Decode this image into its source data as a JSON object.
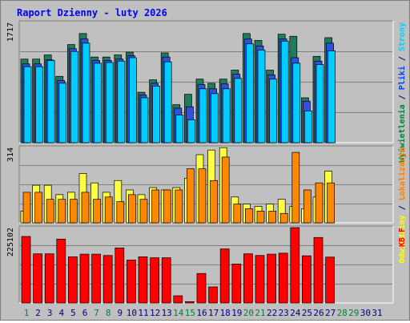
{
  "chart_data": {
    "title": "Raport Dzienny -  luty 2026",
    "type": "bar",
    "x": [
      "1",
      "2",
      "3",
      "4",
      "5",
      "6",
      "7",
      "8",
      "9",
      "10",
      "11",
      "12",
      "13",
      "14",
      "15",
      "16",
      "17",
      "18",
      "19",
      "20",
      "21",
      "22",
      "23",
      "24",
      "25",
      "26",
      "27",
      "28",
      "29",
      "30",
      "31"
    ],
    "x_colors": [
      "#007f3f",
      "#000080",
      "#000080",
      "#000080",
      "#000080",
      "#000080",
      "#007f3f",
      "#007f3f",
      "#000080",
      "#000080",
      "#000080",
      "#000080",
      "#000080",
      "#007f3f",
      "#007f3f",
      "#000080",
      "#000080",
      "#000080",
      "#000080",
      "#007f3f",
      "#007f3f",
      "#000080",
      "#000080",
      "#000080",
      "#000080",
      "#000080",
      "#000080",
      "#007f3f",
      "#007f3f",
      "#000080",
      "#000080"
    ],
    "panels": [
      {
        "max_label": "1717",
        "max": 1717,
        "right_label": [
          {
            "text": "Wyświetlenia",
            "color": "#007f3f"
          },
          {
            "text": " / ",
            "color": "#000080"
          },
          {
            "text": "Pliki",
            "color": "#0040ff"
          },
          {
            "text": " / ",
            "color": "#000080"
          },
          {
            "text": "Strony",
            "color": "#00cfff"
          }
        ],
        "series": [
          {
            "name": "Wyświetlenia",
            "color": "#217a5c",
            "values": [
              1210,
              1210,
              1270,
              960,
              1420,
              1580,
              1240,
              1240,
              1270,
              1310,
              730,
              910,
              1300,
              550,
              700,
              920,
              860,
              920,
              1050,
              1580,
              1480,
              1050,
              1570,
              1540,
              650,
              1250,
              1520,
              0,
              0,
              0,
              0
            ]
          },
          {
            "name": "Pliki",
            "color": "#3050e0",
            "values": [
              1140,
              1140,
              1200,
              900,
              1360,
              1500,
              1190,
              1190,
              1210,
              1260,
              690,
              860,
              1240,
              500,
              520,
              840,
              780,
              850,
              990,
              1500,
              1400,
              980,
              1500,
              1230,
              600,
              1180,
              1440,
              0,
              0,
              0,
              0
            ]
          },
          {
            "name": "Strony",
            "color": "#00ccff",
            "values": [
              1100,
              1100,
              1190,
              860,
              1320,
              1440,
              1150,
              1160,
              1180,
              1230,
              650,
              820,
              1170,
              400,
              330,
              780,
              710,
              780,
              930,
              1430,
              1340,
              920,
              1470,
              1150,
              460,
              1130,
              1330,
              0,
              0,
              0,
              0
            ]
          }
        ]
      },
      {
        "max_label": "314",
        "max": 314,
        "right_label": [
          {
            "text": "Odwiedziny",
            "color": "#ffff00"
          },
          {
            "text": " / ",
            "color": "#000080"
          },
          {
            "text": "Lokalizacje",
            "color": "#ff8000"
          }
        ],
        "series": [
          {
            "name": "Odwiedziny",
            "color": "#ffff44",
            "values": [
              50,
              160,
              160,
              120,
              130,
              210,
              170,
              130,
              180,
              140,
              120,
              150,
              140,
              150,
              190,
              290,
              310,
              320,
              110,
              80,
              70,
              80,
              100,
              70,
              60,
              110,
              220,
              0,
              0,
              0,
              0
            ]
          },
          {
            "name": "Lokalizacje",
            "color": "#ff8800",
            "values": [
              130,
              130,
              100,
              100,
              100,
              130,
              100,
              110,
              90,
              120,
              100,
              140,
              140,
              140,
              230,
              230,
              180,
              280,
              80,
              60,
              50,
              50,
              40,
              300,
              140,
              170,
              170,
              0,
              0,
              0,
              0
            ]
          }
        ]
      },
      {
        "max_label": "225102",
        "max": 225102,
        "right_label": [
          {
            "text": "KB F",
            "color": "#ff0000"
          }
        ],
        "series": [
          {
            "name": "KB F",
            "color": "#ff0000",
            "values": [
              203000,
              150000,
              150000,
              195000,
              141000,
              149000,
              149000,
              145000,
              168000,
              131000,
              141000,
              138000,
              138000,
              22000,
              4000,
              90000,
              49000,
              165000,
              119000,
              150000,
              145000,
              149000,
              152000,
              230000,
              144000,
              200000,
              140000,
              0,
              0,
              0,
              0
            ]
          }
        ]
      }
    ]
  }
}
